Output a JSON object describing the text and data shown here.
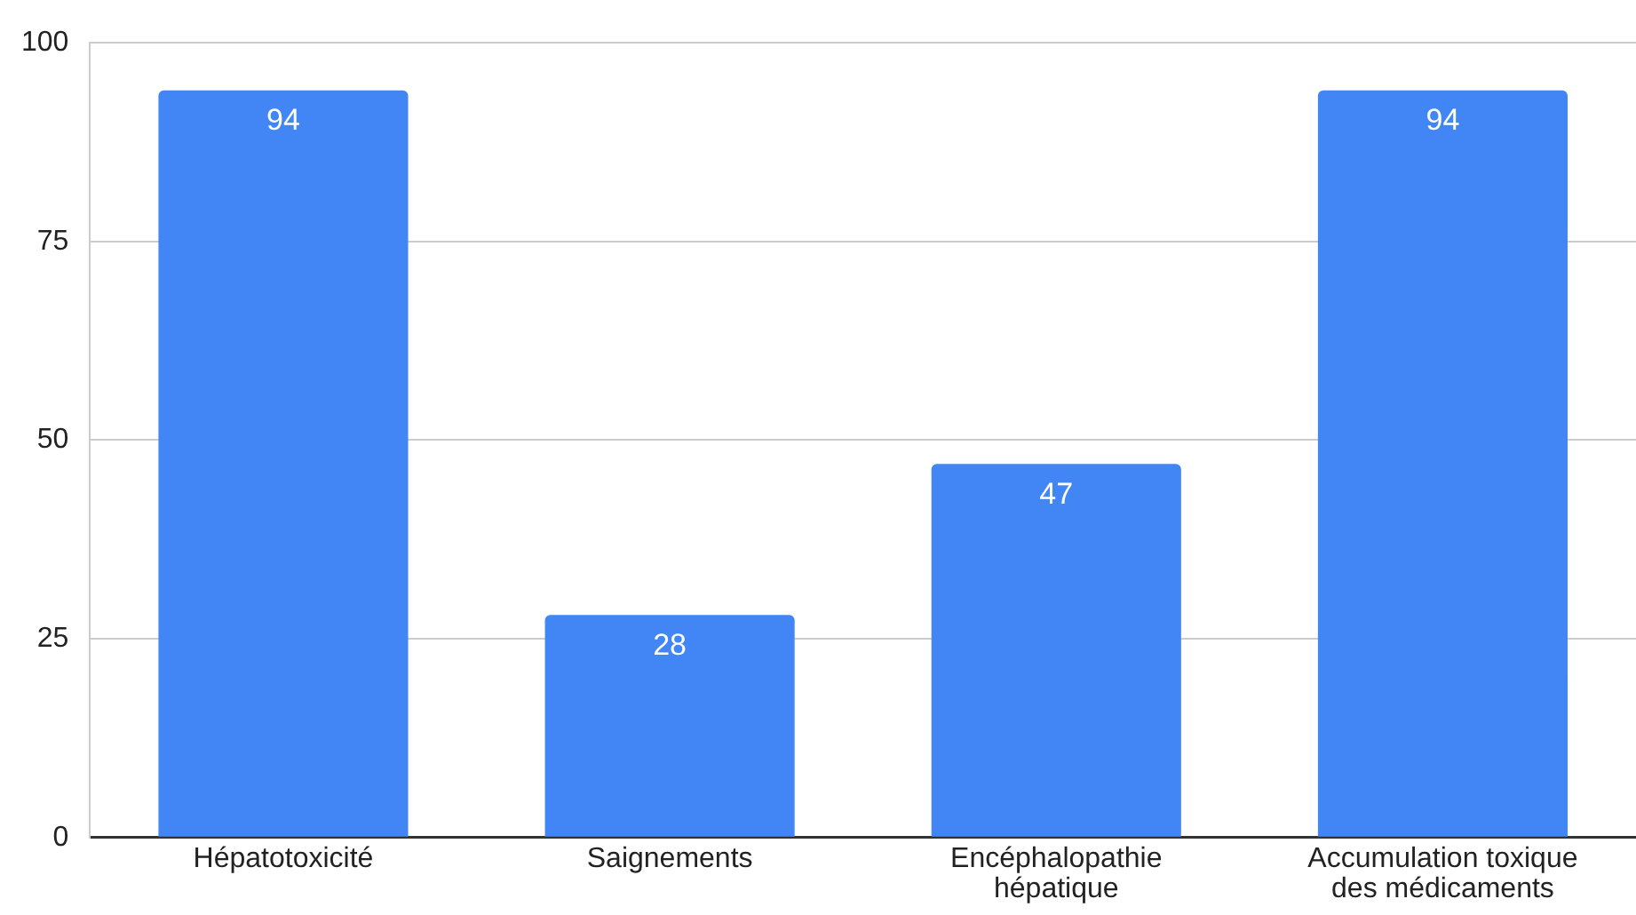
{
  "chart_data": {
    "type": "bar",
    "categories": [
      "Hépatotoxicité",
      "Saignements",
      "Encéphalopathie hépatique",
      "Accumulation toxique des médicaments"
    ],
    "values": [
      94,
      28,
      47,
      94
    ],
    "color": "#4285f4",
    "ylim": [
      0,
      100
    ],
    "yticks": [
      0,
      25,
      50,
      75,
      100
    ],
    "grid": "y",
    "legend": false,
    "data_labels": true
  }
}
